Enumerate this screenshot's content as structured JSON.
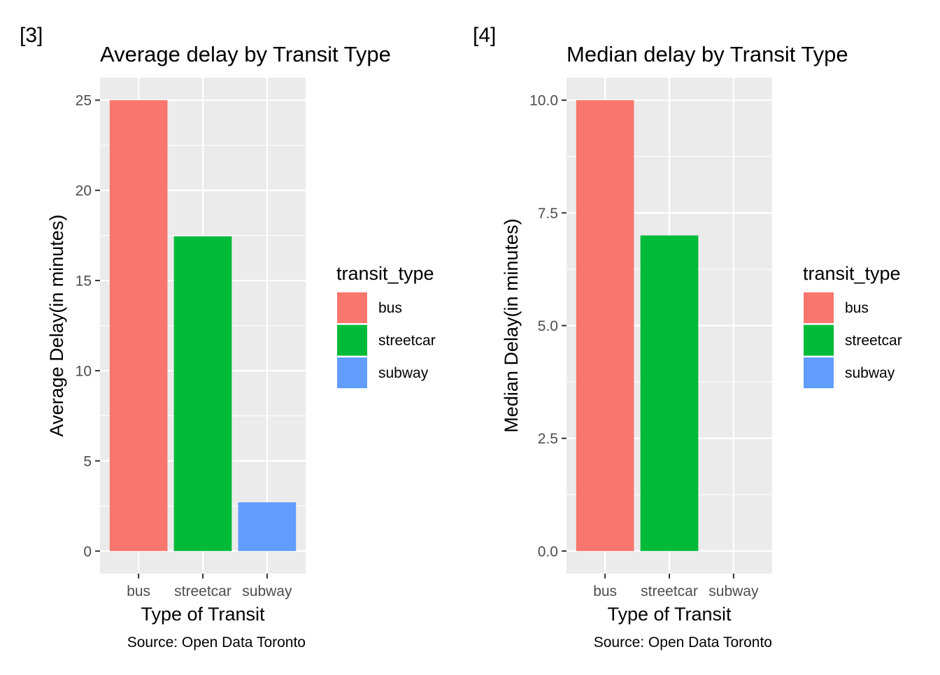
{
  "chart_data": [
    {
      "type": "bar",
      "tag": "[3]",
      "title": "Average delay by Transit Type",
      "xlabel": "Type of Transit",
      "ylabel": "Average Delay(in minutes)",
      "caption": "Source: Open Data Toronto",
      "categories": [
        "bus",
        "streetcar",
        "subway"
      ],
      "values": [
        25.0,
        17.45,
        2.7
      ],
      "ylim": [
        -1.25,
        26.25
      ],
      "yticks": [
        0,
        5,
        10,
        15,
        20,
        25
      ],
      "ytick_labels": [
        "0",
        "5",
        "10",
        "15",
        "20",
        "25"
      ],
      "grid": true,
      "legend": {
        "title": "transit_type",
        "position": "right",
        "items": [
          "bus",
          "streetcar",
          "subway"
        ]
      }
    },
    {
      "type": "bar",
      "tag": "[4]",
      "title": "Median delay by Transit Type",
      "xlabel": "Type of Transit",
      "ylabel": "Median Delay(in minutes)",
      "caption": "Source: Open Data Toronto",
      "categories": [
        "bus",
        "streetcar",
        "subway"
      ],
      "values": [
        10.0,
        7.0,
        0.0
      ],
      "ylim": [
        -0.5,
        10.5
      ],
      "yticks": [
        0,
        2.5,
        5,
        7.5,
        10
      ],
      "ytick_labels": [
        "0.0",
        "2.5",
        "5.0",
        "7.5",
        "10.0"
      ],
      "grid": true,
      "legend": {
        "title": "transit_type",
        "position": "right",
        "items": [
          "bus",
          "streetcar",
          "subway"
        ]
      }
    }
  ],
  "colors": {
    "bus": "#F8766D",
    "streetcar": "#00BA38",
    "subway": "#619CFF",
    "panel_background": "#EBEBEB",
    "grid": "#FFFFFF"
  }
}
